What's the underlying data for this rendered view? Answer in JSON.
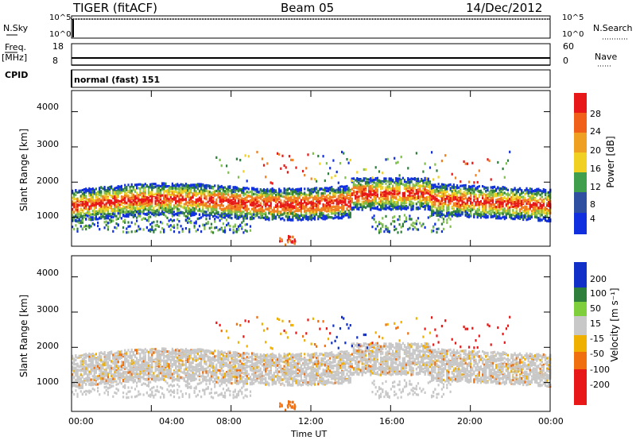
{
  "header": {
    "title": "TIGER (fitACF)",
    "beam": "Beam 05",
    "date": "14/Dec/2012"
  },
  "top_panels": {
    "nsky_label": "N.Sky",
    "nsky_ticks": [
      "10^5",
      "10^0"
    ],
    "nsearch_label": "N.Search",
    "nsearch_ticks": [
      "10^5",
      "10^0"
    ],
    "freq_label": "Freq.",
    "freq_unit": "[MHz]",
    "freq_ticks": [
      "18",
      "8"
    ],
    "nave_label": "Nave",
    "nave_ticks": [
      "60",
      "0"
    ],
    "cpid_label": "CPID",
    "cpid_value": "normal (fast) 151"
  },
  "chart_data": [
    {
      "type": "heatmap",
      "name": "power",
      "ylabel": "Slant Range [km]",
      "yticks": [
        "4000",
        "3000",
        "2000",
        "1000"
      ],
      "ylim": [
        180,
        4600
      ],
      "xlim_hours": [
        0,
        24
      ],
      "colorbar_label": "Power [dB]",
      "colorbar_ticks": [
        "28",
        "24",
        "20",
        "16",
        "12",
        "8",
        "4"
      ],
      "colors": {
        "low": "#1030e0",
        "mid_low": "#2f7f3c",
        "mid": "#7fbf4c",
        "mid_high": "#f0d020",
        "high": "#f08020",
        "max": "#e81818"
      }
    },
    {
      "type": "heatmap",
      "name": "velocity",
      "ylabel": "Slant Range [km]",
      "yticks": [
        "4000",
        "3000",
        "2000",
        "1000"
      ],
      "ylim": [
        180,
        4600
      ],
      "xlim_hours": [
        0,
        24
      ],
      "colorbar_label": "Velocity [m s⁻¹]",
      "colorbar_ticks": [
        "200",
        "100",
        "50",
        "15",
        "-15",
        "-50",
        "-100",
        "-200"
      ],
      "colors": {
        "toward_high": "#1030c8",
        "toward_mid": "#2f7f3c",
        "toward_low": "#7fcf3c",
        "ground": "#c8c8c8",
        "away_low": "#f0b000",
        "away_mid": "#f07010",
        "away_high": "#e81818"
      }
    }
  ],
  "x_axis": {
    "ticks": [
      "00:00",
      "04:00",
      "08:00",
      "12:00",
      "16:00",
      "20:00",
      "00:00"
    ],
    "label": "Time UT"
  }
}
